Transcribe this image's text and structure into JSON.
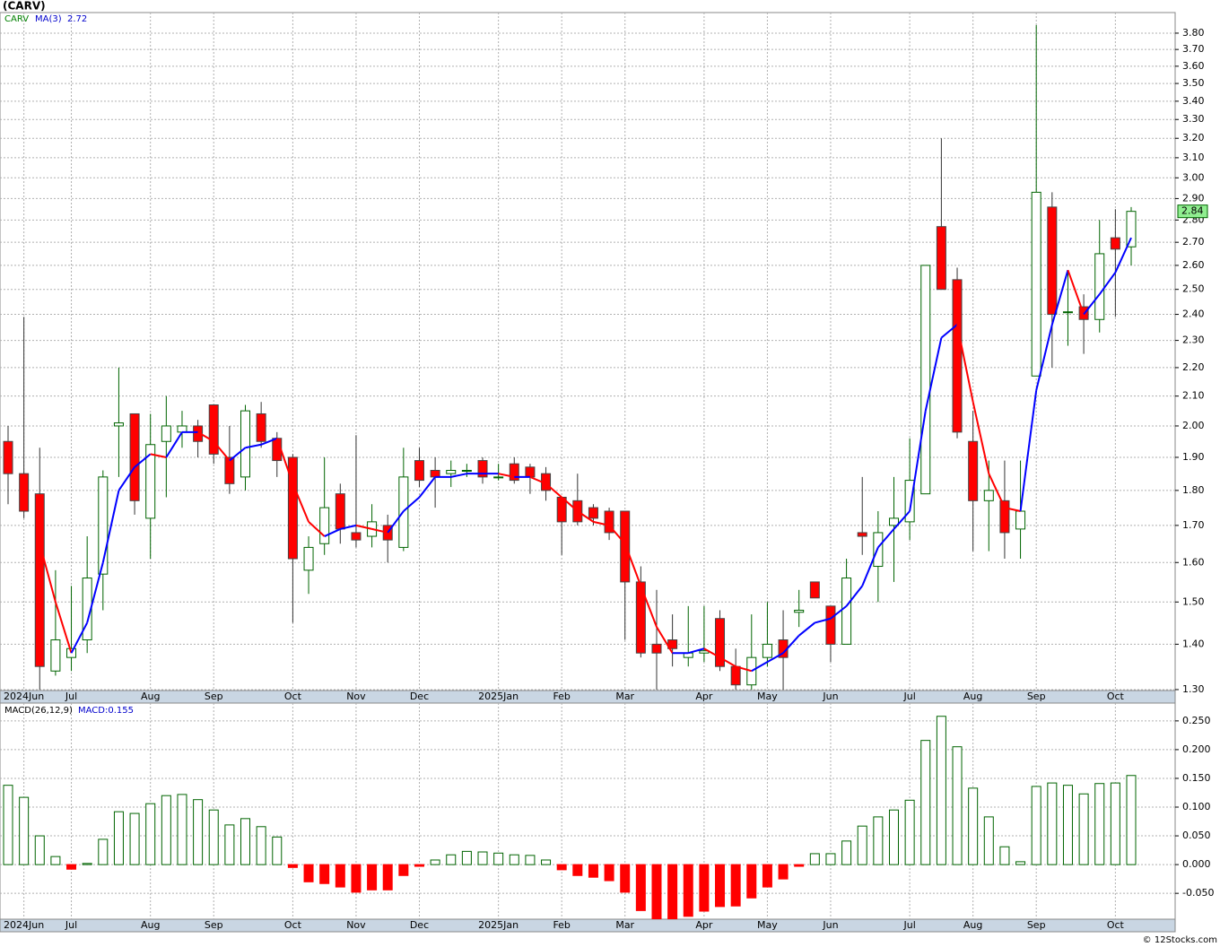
{
  "chart_data": [
    {
      "type": "candlestick",
      "title": "(CARV)",
      "symbol": "CARV",
      "log": true,
      "grid": true,
      "up_color": "#006400",
      "down_color": "#ff0000",
      "categories": [
        null,
        "2024Jun",
        null,
        null,
        "Jul",
        null,
        null,
        null,
        null,
        "Aug",
        null,
        null,
        null,
        "Sep",
        null,
        null,
        null,
        null,
        "Oct",
        null,
        null,
        null,
        "Nov",
        null,
        null,
        null,
        "Dec",
        null,
        null,
        null,
        null,
        "2025Jan",
        null,
        null,
        null,
        "Feb",
        null,
        null,
        null,
        "Mar",
        null,
        null,
        null,
        null,
        "Apr",
        null,
        null,
        null,
        "May",
        null,
        null,
        null,
        "Jun",
        null,
        null,
        null,
        null,
        "Jul",
        null,
        null,
        null,
        "Aug",
        null,
        null,
        null,
        "Sep",
        null,
        null,
        null,
        null,
        "Oct",
        null
      ],
      "open": [
        1.95,
        1.85,
        1.79,
        1.34,
        1.37,
        1.41,
        1.57,
        2.0,
        2.04,
        1.72,
        1.95,
        1.98,
        2.0,
        2.07,
        1.9,
        1.84,
        2.04,
        1.96,
        1.9,
        1.58,
        1.65,
        1.79,
        1.68,
        1.67,
        1.7,
        1.64,
        1.89,
        1.86,
        1.85,
        1.86,
        1.89,
        1.84,
        1.88,
        1.87,
        1.85,
        1.78,
        1.77,
        1.75,
        1.74,
        1.74,
        1.55,
        1.4,
        1.41,
        1.37,
        1.38,
        1.46,
        1.35,
        1.31,
        1.37,
        1.41,
        1.475,
        1.55,
        1.49,
        1.4,
        1.68,
        1.59,
        1.7,
        1.71,
        1.79,
        2.77,
        2.54,
        1.95,
        1.77,
        1.77,
        1.69,
        2.17,
        2.86,
        2.41,
        2.43,
        2.38,
        2.72,
        2.68
      ],
      "high": [
        2.0,
        2.39,
        1.93,
        1.58,
        1.54,
        1.67,
        1.86,
        2.2,
        2.04,
        2.04,
        2.1,
        2.05,
        2.02,
        2.07,
        2.0,
        2.07,
        2.08,
        1.98,
        1.91,
        1.67,
        1.9,
        1.82,
        1.97,
        1.76,
        1.73,
        1.93,
        1.93,
        1.9,
        1.89,
        1.88,
        1.9,
        1.88,
        1.9,
        1.88,
        1.87,
        1.78,
        1.85,
        1.76,
        1.75,
        1.74,
        1.59,
        1.53,
        1.47,
        1.49,
        1.49,
        1.48,
        1.39,
        1.47,
        1.5,
        1.48,
        1.53,
        1.55,
        1.49,
        1.61,
        1.84,
        1.74,
        1.84,
        1.96,
        2.6,
        3.2,
        2.59,
        2.05,
        1.89,
        1.89,
        1.89,
        3.85,
        2.93,
        2.57,
        2.48,
        2.8,
        2.85,
        2.86
      ],
      "low": [
        1.76,
        1.72,
        1.3,
        1.33,
        1.34,
        1.38,
        1.48,
        1.84,
        1.73,
        1.61,
        1.78,
        1.93,
        1.9,
        1.88,
        1.79,
        1.8,
        1.93,
        1.84,
        1.45,
        1.52,
        1.62,
        1.65,
        1.64,
        1.64,
        1.6,
        1.63,
        1.81,
        1.75,
        1.81,
        1.84,
        1.82,
        1.83,
        1.82,
        1.79,
        1.77,
        1.62,
        1.7,
        1.7,
        1.66,
        1.41,
        1.37,
        1.3,
        1.35,
        1.35,
        1.36,
        1.34,
        1.3,
        1.3,
        1.35,
        1.3,
        1.44,
        1.51,
        1.36,
        1.4,
        1.62,
        1.5,
        1.55,
        1.66,
        1.79,
        2.5,
        1.96,
        1.63,
        1.63,
        1.61,
        1.61,
        2.17,
        2.2,
        2.28,
        2.25,
        2.33,
        2.39,
        2.6
      ],
      "close": [
        1.85,
        1.74,
        1.35,
        1.41,
        1.39,
        1.56,
        1.84,
        2.01,
        1.77,
        1.94,
        2.0,
        2.0,
        1.95,
        1.91,
        1.82,
        2.05,
        1.95,
        1.89,
        1.61,
        1.64,
        1.75,
        1.69,
        1.66,
        1.71,
        1.66,
        1.84,
        1.83,
        1.84,
        1.86,
        1.86,
        1.84,
        1.84,
        1.83,
        1.84,
        1.8,
        1.71,
        1.71,
        1.72,
        1.68,
        1.55,
        1.38,
        1.38,
        1.39,
        1.38,
        1.385,
        1.35,
        1.31,
        1.37,
        1.4,
        1.37,
        1.48,
        1.51,
        1.4,
        1.56,
        1.67,
        1.68,
        1.72,
        1.83,
        2.6,
        2.5,
        1.98,
        1.77,
        1.8,
        1.68,
        1.74,
        2.93,
        2.4,
        2.41,
        2.38,
        2.65,
        2.67,
        2.84
      ],
      "ma": {
        "name": "MA(3)",
        "up_color": "#0000ff",
        "down_color": "#ff0000",
        "values": [
          null,
          null,
          1.65,
          1.5,
          1.38,
          1.45,
          1.6,
          1.8,
          1.87,
          1.91,
          1.9,
          1.98,
          1.98,
          1.95,
          1.89,
          1.93,
          1.94,
          1.96,
          1.82,
          1.71,
          1.67,
          1.69,
          1.7,
          1.69,
          1.68,
          1.74,
          1.78,
          1.84,
          1.84,
          1.85,
          1.85,
          1.85,
          1.84,
          1.84,
          1.82,
          1.78,
          1.74,
          1.71,
          1.7,
          1.65,
          1.54,
          1.44,
          1.38,
          1.38,
          1.39,
          1.37,
          1.35,
          1.34,
          1.36,
          1.38,
          1.42,
          1.45,
          1.46,
          1.49,
          1.54,
          1.64,
          1.69,
          1.74,
          2.05,
          2.31,
          2.36,
          2.08,
          1.85,
          1.75,
          1.74,
          2.12,
          2.36,
          2.58,
          2.4,
          2.48,
          2.57,
          2.72
        ]
      },
      "ylim": [
        1.298,
        3.93
      ],
      "yticks": [
        {
          "value": 1.3,
          "label": "1.30"
        },
        {
          "value": 1.4,
          "label": "1.40"
        },
        {
          "value": 1.5,
          "label": "1.50"
        },
        {
          "value": 1.6,
          "label": "1.60"
        },
        {
          "value": 1.7,
          "label": "1.70"
        },
        {
          "value": 1.8,
          "label": "1.80"
        },
        {
          "value": 1.9,
          "label": "1.90"
        },
        {
          "value": 2.0,
          "label": "2.00"
        },
        {
          "value": 2.1,
          "label": "2.10"
        },
        {
          "value": 2.2,
          "label": "2.20"
        },
        {
          "value": 2.3,
          "label": "2.30"
        },
        {
          "value": 2.4,
          "label": "2.40"
        },
        {
          "value": 2.5,
          "label": "2.50"
        },
        {
          "value": 2.6,
          "label": "2.60"
        },
        {
          "value": 2.7,
          "label": "2.70"
        },
        {
          "value": 2.8,
          "label": "2.80"
        },
        {
          "value": 2.9,
          "label": "2.90"
        },
        {
          "value": 3.0,
          "label": "3.00"
        },
        {
          "value": 3.1,
          "label": "3.10"
        },
        {
          "value": 3.2,
          "label": "3.20"
        },
        {
          "value": 3.3,
          "label": "3.30"
        },
        {
          "value": 3.4,
          "label": "3.40"
        },
        {
          "value": 3.5,
          "label": "3.50"
        },
        {
          "value": 3.6,
          "label": "3.60"
        },
        {
          "value": 3.7,
          "label": "3.70"
        },
        {
          "value": 3.8,
          "label": "3.80"
        }
      ]
    },
    {
      "type": "bar",
      "name": "MACD(26,12,9)",
      "current": "MACD:0.155",
      "grid": true,
      "up_color": "#006400",
      "down_color": "#ff0000",
      "values": [
        0.138,
        0.117,
        0.05,
        0.014,
        -0.008,
        0.002,
        0.044,
        0.092,
        0.089,
        0.106,
        0.12,
        0.122,
        0.113,
        0.095,
        0.069,
        0.08,
        0.066,
        0.048,
        -0.005,
        -0.03,
        -0.033,
        -0.039,
        -0.048,
        -0.044,
        -0.044,
        -0.019,
        -0.003,
        0.008,
        0.017,
        0.023,
        0.022,
        0.02,
        0.017,
        0.016,
        0.008,
        -0.009,
        -0.019,
        -0.022,
        -0.028,
        -0.048,
        -0.08,
        -0.1,
        -0.1,
        -0.09,
        -0.081,
        -0.073,
        -0.072,
        -0.058,
        -0.039,
        -0.025,
        -0.003,
        0.019,
        0.019,
        0.041,
        0.067,
        0.083,
        0.095,
        0.112,
        0.216,
        0.258,
        0.205,
        0.133,
        0.083,
        0.031,
        0.005,
        0.136,
        0.142,
        0.138,
        0.123,
        0.141,
        0.142,
        0.155
      ],
      "ylim": [
        -0.095,
        0.281
      ],
      "yticks": [
        {
          "value": 0.25,
          "label": "0.250"
        },
        {
          "value": 0.2,
          "label": "0.200"
        },
        {
          "value": 0.15,
          "label": "0.150"
        },
        {
          "value": 0.1,
          "label": "0.100"
        },
        {
          "value": 0.05,
          "label": "0.050"
        },
        {
          "value": 0,
          "label": "0.000"
        },
        {
          "value": -0.05,
          "label": "-0.050"
        }
      ]
    }
  ],
  "footer": "© 12Stocks.com"
}
